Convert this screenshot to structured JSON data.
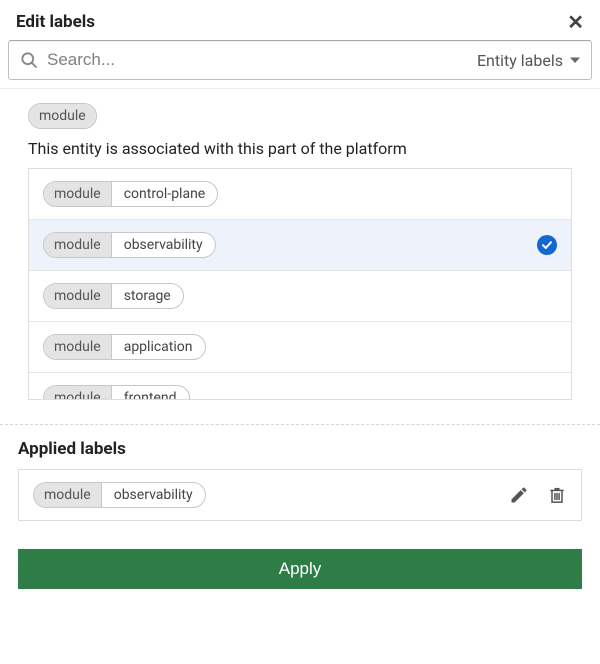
{
  "dialog": {
    "title": "Edit labels",
    "search_placeholder": "Search...",
    "filter_label": "Entity labels",
    "key_chip": "module",
    "description": "This entity is associated with this part of the platform",
    "options": [
      {
        "key": "module",
        "value": "control-plane",
        "selected": false
      },
      {
        "key": "module",
        "value": "observability",
        "selected": true
      },
      {
        "key": "module",
        "value": "storage",
        "selected": false
      },
      {
        "key": "module",
        "value": "application",
        "selected": false
      },
      {
        "key": "module",
        "value": "frontend",
        "selected": false
      }
    ],
    "applied_heading": "Applied labels",
    "applied": [
      {
        "key": "module",
        "value": "observability"
      }
    ],
    "apply_button": "Apply"
  },
  "style": {
    "accent_color": "#1467d2",
    "apply_button_bg": "#2e7d47",
    "chip_key_bg": "#e4e4e4",
    "chip_border": "#c7c7c7",
    "selected_row_bg": "#eef2fb",
    "border_color": "#dddddd",
    "text_color": "#222222",
    "muted_text": "#707070"
  }
}
